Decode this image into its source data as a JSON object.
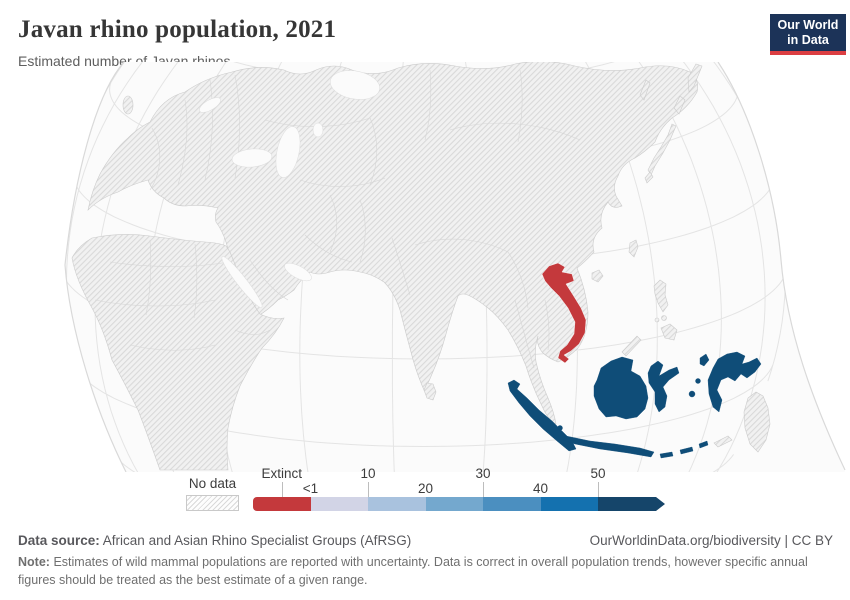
{
  "header": {
    "title": "Javan rhino population, 2021",
    "subtitle": "Estimated number of Javan rhinos."
  },
  "logo": {
    "line1": "Our World",
    "line2": "in Data",
    "bg_color": "#1c3358",
    "accent_color": "#dc3e42"
  },
  "map": {
    "no_data_style": "hatched",
    "highlighted": [
      {
        "entity": "Vietnam",
        "bin": "Extinct",
        "color": "#c4393c"
      },
      {
        "entity": "Indonesia",
        "bin": "50+",
        "color": "#0f4d78"
      }
    ]
  },
  "legend": {
    "no_data_label": "No data",
    "colors": [
      "#c4393c",
      "#d2d4e6",
      "#a9c2de",
      "#74a8ce",
      "#4b8fc0",
      "#1471af",
      "#15456a"
    ],
    "ticks": [
      {
        "label": "Extinct",
        "row": "top",
        "pos": 0.5
      },
      {
        "label": "<1",
        "row": "bottom",
        "pos": 1
      },
      {
        "label": "10",
        "row": "top",
        "pos": 2
      },
      {
        "label": "20",
        "row": "bottom",
        "pos": 3
      },
      {
        "label": "30",
        "row": "top",
        "pos": 4
      },
      {
        "label": "40",
        "row": "bottom",
        "pos": 5
      },
      {
        "label": "50",
        "row": "top",
        "pos": 6
      }
    ]
  },
  "footer": {
    "source_label": "Data source:",
    "source_text": "African and Asian Rhino Specialist Groups (AfRSG)",
    "license_text": "OurWorldinData.org/biodiversity | CC BY",
    "note_label": "Note:",
    "note_text": "Estimates of wild mammal populations are reported with uncertainty. Data is correct in overall population trends, however specific annual figures should be treated as the best estimate of a given range."
  },
  "chart_data": {
    "type": "choropleth_map",
    "title": "Javan rhino population, 2021",
    "subtitle": "Estimated number of Javan rhinos.",
    "year": 2021,
    "legend_bins": [
      "Extinct",
      "<1",
      "10",
      "20",
      "30",
      "40",
      "50"
    ],
    "legend_colors": [
      "#c4393c",
      "#d2d4e6",
      "#a9c2de",
      "#74a8ce",
      "#4b8fc0",
      "#1471af",
      "#15456a"
    ],
    "data": [
      {
        "entity": "Vietnam",
        "value": "Extinct"
      },
      {
        "entity": "Indonesia",
        "value": "50+ (darkest bin)"
      }
    ],
    "no_data": "all other countries (hatched)"
  }
}
